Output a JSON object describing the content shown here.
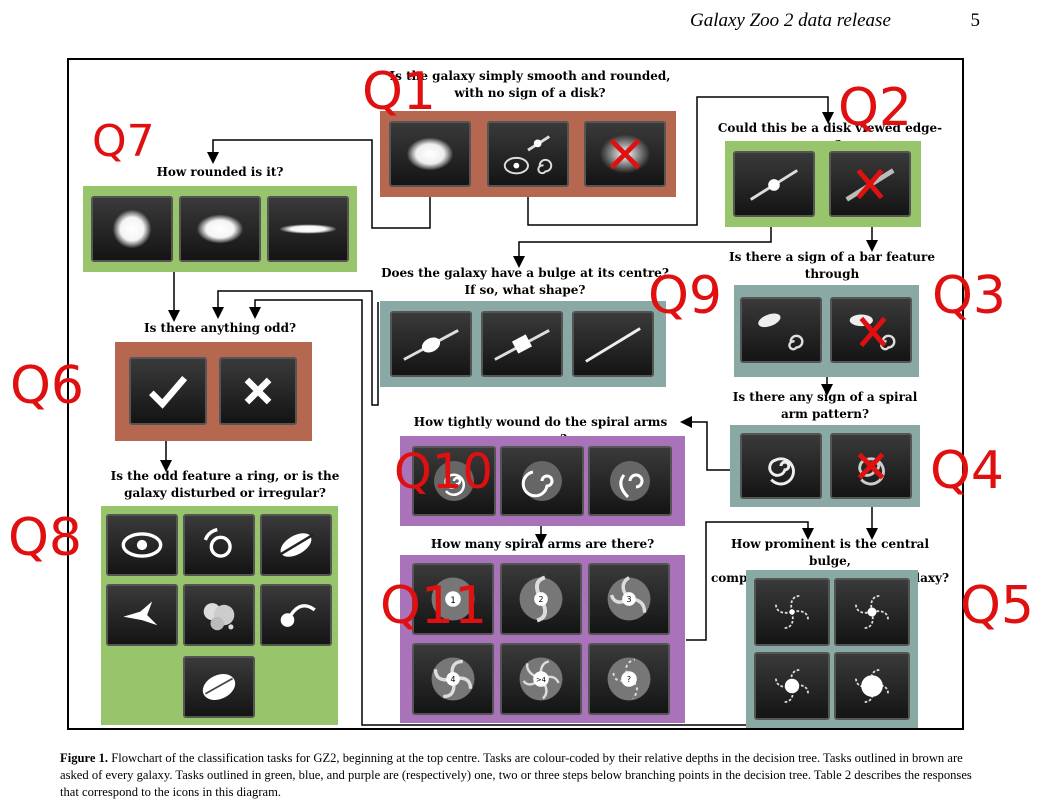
{
  "header": {
    "running_title": "Galaxy Zoo 2 data release",
    "page_number": "5"
  },
  "questions": {
    "q1": "Is the galaxy simply smooth and rounded,\nwith no sign of a disk?",
    "q2": "Could this be a disk viewed edge-on?",
    "q7": "How rounded is it?",
    "q9": "Does the galaxy have a bulge at its centre?\nIf so, what shape?",
    "q3": "Is there a sign of a bar feature through\nthe centre of the galaxy?",
    "q6": "Is there anything odd?",
    "q4": "Is there any sign of a spiral\narm pattern?",
    "q10": "How tightly wound do the spiral arms appear?",
    "q8": "Is the odd feature a ring, or is the\ngalaxy disturbed or irregular?",
    "q11": "How many spiral arms are there?",
    "q5": "How prominent is the central bulge,\ncompared to the rest of the galaxy?"
  },
  "arm_counts": [
    "1",
    "2",
    "3",
    "4",
    ">4",
    "?"
  ],
  "annotations": {
    "q1": "Q1",
    "q2": "Q2",
    "q7": "Q7",
    "q9": "Q9",
    "q3": "Q3",
    "q6": "Q6",
    "q4": "Q4",
    "q10": "Q10",
    "q8": "Q8",
    "q11": "Q11",
    "q5": "Q5"
  },
  "caption": {
    "label": "Figure 1.",
    "text": "Flowchart of the classification tasks for GZ2, beginning at the top centre. Tasks are colour-coded by their relative depths in the decision tree. Tasks outlined in brown are asked of every galaxy. Tasks outlined in green, blue, and purple are (respectively) one, two or three steps below branching points in the decision tree. Table 2 describes the responses that correspond to the icons in this diagram."
  },
  "colors": {
    "brown": "#b5674f",
    "green": "#98c46b",
    "blue": "#8aa9a4",
    "purple": "#a873b8",
    "annotation_red": "#e01010"
  }
}
